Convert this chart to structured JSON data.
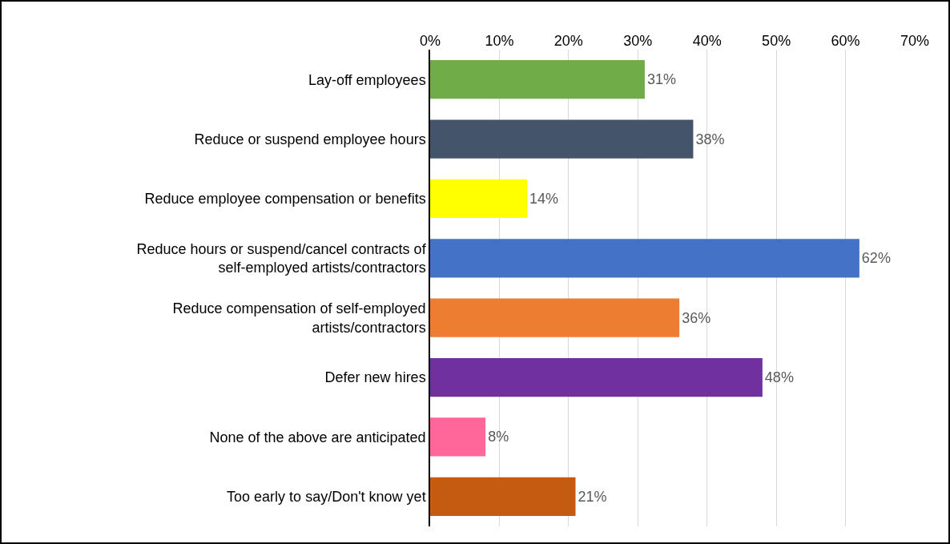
{
  "chart_data": {
    "type": "bar",
    "orientation": "horizontal",
    "categories": [
      "Lay-off employees",
      "Reduce or suspend employee hours",
      "Reduce employee compensation or benefits",
      "Reduce hours or suspend/cancel contracts of self-employed artists/contractors",
      "Reduce compensation of self-employed artists/contractors",
      "Defer new hires",
      "None of the above are anticipated",
      "Too early to say/Don't know yet"
    ],
    "values": [
      31,
      38,
      14,
      62,
      36,
      48,
      8,
      21
    ],
    "value_labels": [
      "31%",
      "38%",
      "14%",
      "62%",
      "36%",
      "48%",
      "8%",
      "21%"
    ],
    "colors": [
      "#70ad47",
      "#44546a",
      "#ffff00",
      "#4472c4",
      "#ed7d31",
      "#7030a0",
      "#ff6699",
      "#c55a11"
    ],
    "xlim": [
      0,
      70
    ],
    "xticks": [
      {
        "value": 0,
        "label": "0%"
      },
      {
        "value": 10,
        "label": "10%"
      },
      {
        "value": 20,
        "label": "20%"
      },
      {
        "value": 30,
        "label": "30%"
      },
      {
        "value": 40,
        "label": "40%"
      },
      {
        "value": 50,
        "label": "50%"
      },
      {
        "value": 60,
        "label": "60%"
      },
      {
        "value": 70,
        "label": "70%"
      }
    ],
    "grid": "x"
  }
}
